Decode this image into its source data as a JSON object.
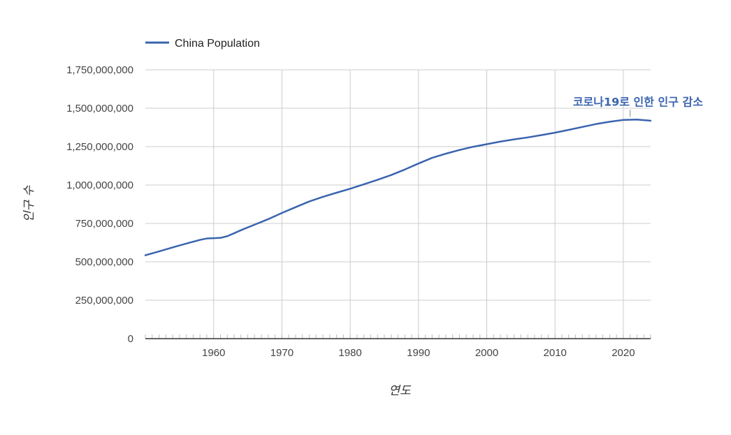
{
  "chart_data": {
    "type": "line",
    "series": [
      {
        "name": "China Population",
        "color": "#3a64ae",
        "x": [
          1950,
          1952,
          1954,
          1956,
          1958,
          1959,
          1960,
          1961,
          1962,
          1963,
          1964,
          1966,
          1968,
          1970,
          1972,
          1974,
          1976,
          1978,
          1980,
          1982,
          1984,
          1986,
          1988,
          1990,
          1992,
          1994,
          1996,
          1998,
          2000,
          2002,
          2004,
          2006,
          2008,
          2010,
          2012,
          2014,
          2016,
          2018,
          2020,
          2022,
          2024
        ],
        "values": [
          543000000,
          568000000,
          594000000,
          619000000,
          643000000,
          652000000,
          654000000,
          656000000,
          667000000,
          686000000,
          706000000,
          742000000,
          778000000,
          818000000,
          856000000,
          893000000,
          923000000,
          950000000,
          976000000,
          1005000000,
          1034000000,
          1065000000,
          1101000000,
          1140000000,
          1177000000,
          1204000000,
          1228000000,
          1249000000,
          1266000000,
          1283000000,
          1297000000,
          1310000000,
          1325000000,
          1341000000,
          1359000000,
          1378000000,
          1397000000,
          1412000000,
          1424000000,
          1426000000,
          1419000000
        ]
      }
    ],
    "xlabel": "연도",
    "ylabel": "인구 수",
    "xticks": [
      1960,
      1970,
      1980,
      1990,
      2000,
      2010,
      2020
    ],
    "yticks": [
      0,
      250000000,
      500000000,
      750000000,
      1000000000,
      1250000000,
      1500000000,
      1750000000
    ],
    "ytick_labels": [
      "0",
      "250,000,000",
      "500,000,000",
      "750,000,000",
      "1,000,000,000",
      "1,250,000,000",
      "1,500,000,000",
      "1,750,000,000"
    ],
    "xlim": [
      1950,
      2024
    ],
    "ylim": [
      0,
      1750000000
    ],
    "grid": true,
    "legend_position": "top-left",
    "annotations": [
      {
        "text": "코로나19로 인한 인구 감소",
        "x": 2021,
        "y": 1426000000
      }
    ]
  }
}
